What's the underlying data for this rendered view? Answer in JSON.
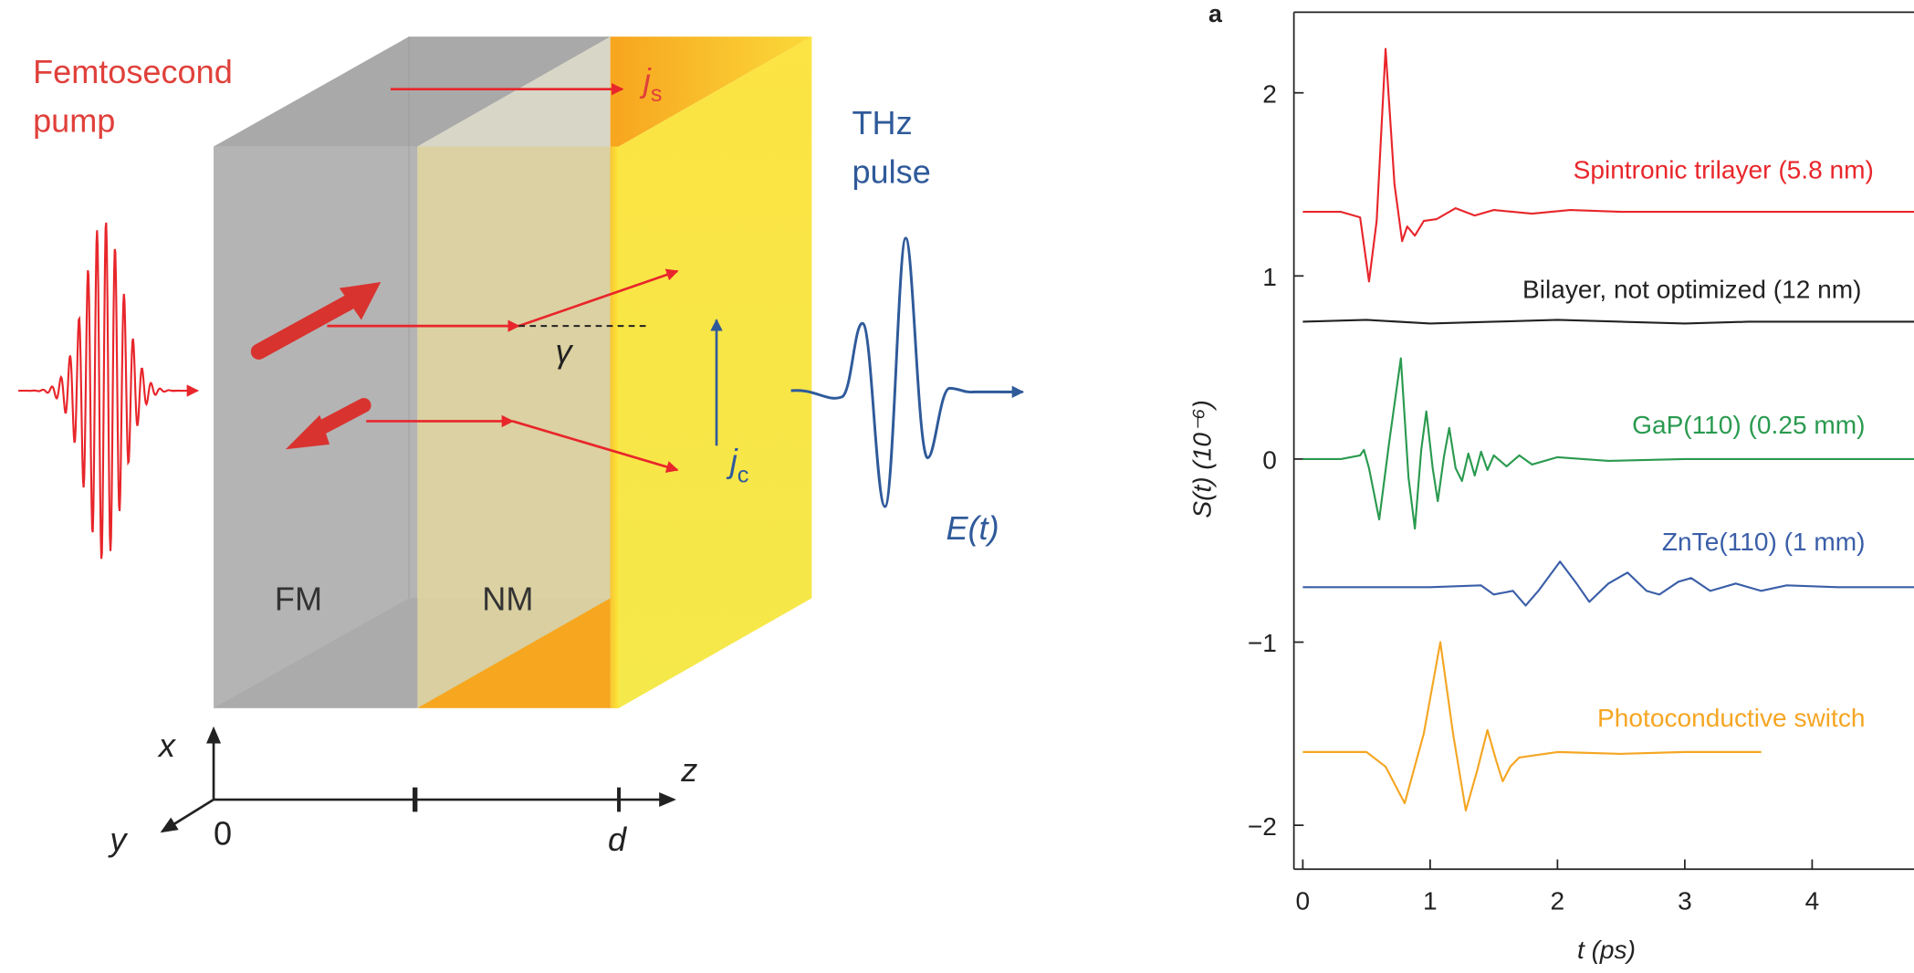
{
  "diagram": {
    "pump": [
      "Femtosecond",
      "pump"
    ],
    "thz": [
      "THz",
      "pulse"
    ],
    "js": {
      "main": "j",
      "sub": "s"
    },
    "jc": {
      "main": "j",
      "sub": "c"
    },
    "gamma": "γ",
    "field": "E(t)",
    "fm": "FM",
    "nm": "NM",
    "axis_x": "x",
    "axis_y": "y",
    "axis_z": "z",
    "origin": "0",
    "thickness": "d"
  },
  "chart_data": {
    "type": "line",
    "panel": "a",
    "xlabel": "t (ps)",
    "ylabel": "S(t) (10⁻⁶)",
    "xlim": [
      -0.07,
      4.8
    ],
    "ylim": [
      -2.24,
      2.44
    ],
    "xticks": [
      0,
      1,
      2,
      3,
      4
    ],
    "yticks": [
      {
        "value": -2,
        "label": "−2"
      },
      {
        "value": -1,
        "label": "−1"
      },
      0,
      1,
      2
    ],
    "series": [
      {
        "name": "Spintronic trilayer (5.8 nm)",
        "color": "#e8262b",
        "x": [
          0,
          0.3,
          0.45,
          0.52,
          0.58,
          0.65,
          0.72,
          0.78,
          0.82,
          0.88,
          0.95,
          1.05,
          1.2,
          1.35,
          1.5,
          1.8,
          2.1,
          2.5,
          3,
          4,
          4.8
        ],
        "values": [
          1.35,
          1.35,
          1.32,
          0.97,
          1.3,
          2.24,
          1.5,
          1.19,
          1.27,
          1.22,
          1.3,
          1.31,
          1.37,
          1.33,
          1.36,
          1.34,
          1.36,
          1.35,
          1.35,
          1.35,
          1.35
        ]
      },
      {
        "name": "Bilayer, not optimized (12 nm)",
        "color": "#222222",
        "x": [
          0,
          0.5,
          1,
          1.5,
          2,
          2.5,
          3,
          3.5,
          4,
          4.8
        ],
        "values": [
          0.75,
          0.76,
          0.74,
          0.75,
          0.76,
          0.75,
          0.74,
          0.75,
          0.75,
          0.75
        ]
      },
      {
        "name": "GaP(110) (0.25 mm)",
        "color": "#2a9a4f",
        "x": [
          0,
          0.3,
          0.45,
          0.48,
          0.52,
          0.6,
          0.68,
          0.77,
          0.83,
          0.88,
          0.93,
          0.97,
          1.02,
          1.06,
          1.11,
          1.15,
          1.2,
          1.25,
          1.3,
          1.35,
          1.4,
          1.45,
          1.5,
          1.6,
          1.7,
          1.8,
          2,
          2.4,
          3,
          4,
          4.8
        ],
        "values": [
          0,
          0,
          0.02,
          0.05,
          -0.05,
          -0.33,
          0.1,
          0.55,
          -0.1,
          -0.38,
          0.05,
          0.26,
          -0.05,
          -0.23,
          0.02,
          0.17,
          -0.05,
          -0.12,
          0.03,
          -0.09,
          0.04,
          -0.06,
          0.02,
          -0.04,
          0.02,
          -0.03,
          0.01,
          -0.01,
          0,
          0,
          0
        ]
      },
      {
        "name": "ZnTe(110) (1 mm)",
        "color": "#3a5ea8",
        "x": [
          0,
          0.5,
          1,
          1.4,
          1.5,
          1.65,
          1.75,
          1.85,
          2.02,
          2.15,
          2.25,
          2.4,
          2.55,
          2.7,
          2.8,
          2.95,
          3.05,
          3.2,
          3.4,
          3.6,
          3.8,
          4.2,
          4.8
        ],
        "values": [
          -0.7,
          -0.7,
          -0.7,
          -0.69,
          -0.74,
          -0.72,
          -0.8,
          -0.72,
          -0.56,
          -0.68,
          -0.78,
          -0.68,
          -0.62,
          -0.72,
          -0.74,
          -0.67,
          -0.65,
          -0.72,
          -0.68,
          -0.72,
          -0.69,
          -0.7,
          -0.7
        ]
      },
      {
        "name": "Photoconductive switch",
        "color": "#f5a623",
        "x": [
          0,
          0.5,
          0.65,
          0.8,
          0.95,
          1.08,
          1.18,
          1.28,
          1.37,
          1.45,
          1.52,
          1.57,
          1.63,
          1.7,
          1.8,
          2,
          2.5,
          3,
          3.6
        ],
        "values": [
          -1.6,
          -1.6,
          -1.68,
          -1.88,
          -1.5,
          -1.0,
          -1.5,
          -1.92,
          -1.7,
          -1.48,
          -1.65,
          -1.76,
          -1.68,
          -1.63,
          -1.62,
          -1.6,
          -1.61,
          -1.6,
          -1.6
        ]
      }
    ]
  }
}
